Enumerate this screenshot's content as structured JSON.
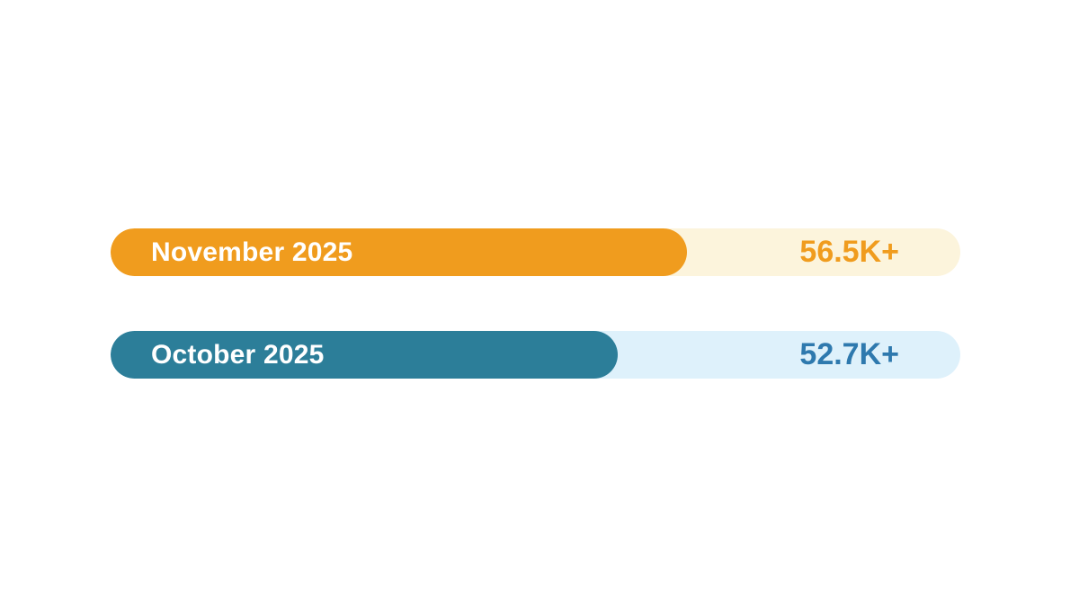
{
  "chart_data": {
    "type": "bar",
    "orientation": "horizontal",
    "title": "",
    "xlabel": "",
    "ylabel": "",
    "legend": false,
    "grid": false,
    "background_color": "#FFFFFF",
    "categories": [
      "November 2025",
      "October 2025"
    ],
    "values": [
      56500,
      52700
    ],
    "value_labels": [
      "56.5K+",
      "52.7K+"
    ],
    "bars": [
      {
        "label": "November 2025",
        "value": 56500,
        "value_label": "56.5K+",
        "fill_color": "#F09C1E",
        "track_color": "#FCF4DC",
        "label_color": "#FFFFFF",
        "value_color": "#F09C1E",
        "fill_percent": "67.8%"
      },
      {
        "label": "October 2025",
        "value": 52700,
        "value_label": "52.7K+",
        "fill_color": "#2C7E99",
        "track_color": "#DEF1FB",
        "label_color": "#FFFFFF",
        "value_color": "#2E79AE",
        "fill_percent": "59.7%"
      }
    ]
  }
}
